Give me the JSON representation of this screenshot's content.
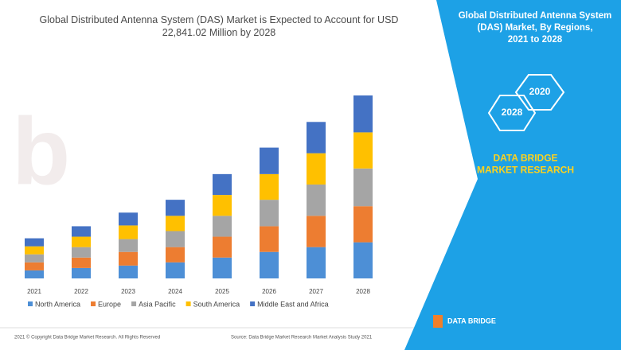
{
  "chart_data": {
    "type": "stacked-bar",
    "title": "Global Distributed Antenna System (DAS) Market is Expected to Account for USD 22,841.02 Million by 2028",
    "categories": [
      "2021",
      "2022",
      "2023",
      "2024",
      "2025",
      "2026",
      "2027",
      "2028"
    ],
    "series": [
      {
        "name": "North America",
        "color": "#4d8fd6",
        "values": [
          10,
          13,
          16,
          20,
          26,
          33,
          39,
          45
        ]
      },
      {
        "name": "Europe",
        "color": "#ed7d31",
        "values": [
          10,
          13,
          17,
          19,
          26,
          32,
          39,
          45
        ]
      },
      {
        "name": "Asia Pacific",
        "color": "#a5a5a5",
        "values": [
          10,
          13,
          16,
          20,
          26,
          33,
          39,
          47
        ]
      },
      {
        "name": "South America",
        "color": "#ffc000",
        "values": [
          10,
          13,
          17,
          19,
          26,
          32,
          39,
          45
        ]
      },
      {
        "name": "Middle East and Africa",
        "color": "#4472c4",
        "values": [
          10,
          13,
          16,
          20,
          26,
          33,
          39,
          46
        ]
      }
    ]
  },
  "side_panel": {
    "title": "Global Distributed Antenna System (DAS) Market, By Regions, 2021 to 2028",
    "hexagons": [
      "2020",
      "2028"
    ],
    "brand": "DATA BRIDGE MARKET RESEARCH"
  },
  "footer": {
    "copyright": "2021 © Copyright Data Bridge Market Research. All Rights Reserved",
    "source": "Source: Data Bridge Market Research Market Analysis Study 2021",
    "logo": "DATA BRIDGE"
  }
}
